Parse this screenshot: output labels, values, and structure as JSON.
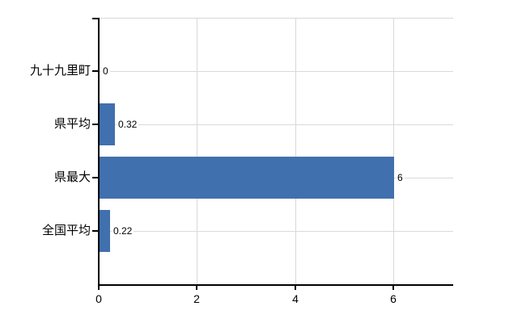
{
  "chart_data": {
    "type": "bar",
    "orientation": "horizontal",
    "title": "",
    "xlabel": "",
    "ylabel": "",
    "categories": [
      "九十九里町",
      "県平均",
      "県最大",
      "全国平均"
    ],
    "values": [
      0,
      0.32,
      6,
      0.22
    ],
    "value_labels": [
      "0",
      "0.32",
      "6",
      "0.22"
    ],
    "x_ticks": [
      0,
      2,
      4,
      6
    ],
    "x_tick_labels": [
      "0",
      "2",
      "4",
      "6"
    ],
    "xlim": [
      0,
      7.22
    ],
    "grid": true,
    "legend": false,
    "colors": {
      "bar": "#4170ae",
      "gridline_h": "#d5dcd5",
      "gridline_v": "#d8d8d8",
      "plot_border": "#d8d8d8",
      "axis": "#000000",
      "text": "#000000",
      "background": "#ffffff"
    }
  }
}
